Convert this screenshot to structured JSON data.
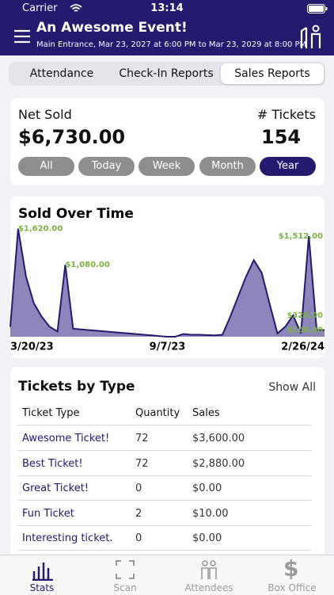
{
  "status": {
    "carrier": "Carrier",
    "time": "13:14"
  },
  "header": {
    "title": "An Awesome Event!",
    "subtitle": "Main Entrance, Mar 23, 2027 at 6:00 PM to Mar 23, 2029 at 8:00 PM"
  },
  "tabs": [
    "Attendance",
    "Check-In Reports",
    "Sales Reports"
  ],
  "summary": {
    "net_sold_label": "Net Sold",
    "net_sold": "$6,730.00",
    "tickets_label": "# Tickets",
    "tickets": "154",
    "periods": [
      "All",
      "Today",
      "Week",
      "Month",
      "Year"
    ]
  },
  "chart_data": {
    "type": "area",
    "title": "Sold Over Time",
    "categories": [
      "3/20/23",
      null,
      null,
      null,
      null,
      null,
      null,
      null,
      null,
      null,
      null,
      null,
      null,
      null,
      null,
      null,
      null,
      null,
      null,
      null,
      "9/7/23",
      null,
      null,
      null,
      null,
      null,
      null,
      null,
      null,
      null,
      null,
      null,
      null,
      null,
      null,
      null,
      null,
      null,
      null,
      null,
      "2/26/24"
    ],
    "values": [
      150,
      1620,
      900,
      500,
      300,
      150,
      80,
      1080,
      120,
      110,
      100,
      90,
      80,
      70,
      60,
      50,
      40,
      30,
      20,
      10,
      0,
      0,
      40,
      30,
      30,
      25,
      20,
      30,
      300,
      600,
      900,
      1150,
      960,
      500,
      50,
      150,
      320,
      50,
      1512,
      100,
      100
    ],
    "value_labels": [
      null,
      "$1,620.00",
      null,
      null,
      null,
      null,
      null,
      "$1,080.00",
      null,
      null,
      null,
      null,
      null,
      null,
      null,
      null,
      null,
      null,
      null,
      null,
      null,
      null,
      null,
      null,
      null,
      null,
      null,
      null,
      null,
      null,
      null,
      null,
      null,
      null,
      null,
      null,
      "$320.00",
      null,
      "$1,512.00",
      null,
      "$100.00"
    ],
    "color": "#8d86bb",
    "line_color": "#241a6e",
    "label_color": "#7cb342",
    "ylim": [
      0,
      1700
    ]
  },
  "tickets_by_type": {
    "title": "Tickets by Type",
    "show_all": "Show All",
    "columns": [
      "Ticket Type",
      "Quantity",
      "Sales"
    ],
    "rows": [
      [
        "Awesome Ticket!",
        "72",
        "$3,600.00"
      ],
      [
        "Best Ticket!",
        "72",
        "$2,880.00"
      ],
      [
        "Great Ticket!",
        "0",
        "$0.00"
      ],
      [
        "Fun Ticket",
        "2",
        "$10.00"
      ],
      [
        "Interesting ticket.",
        "0",
        "$0.00"
      ]
    ]
  },
  "tabbar": [
    "Stats",
    "Scan",
    "Attendees",
    "Box Office"
  ]
}
